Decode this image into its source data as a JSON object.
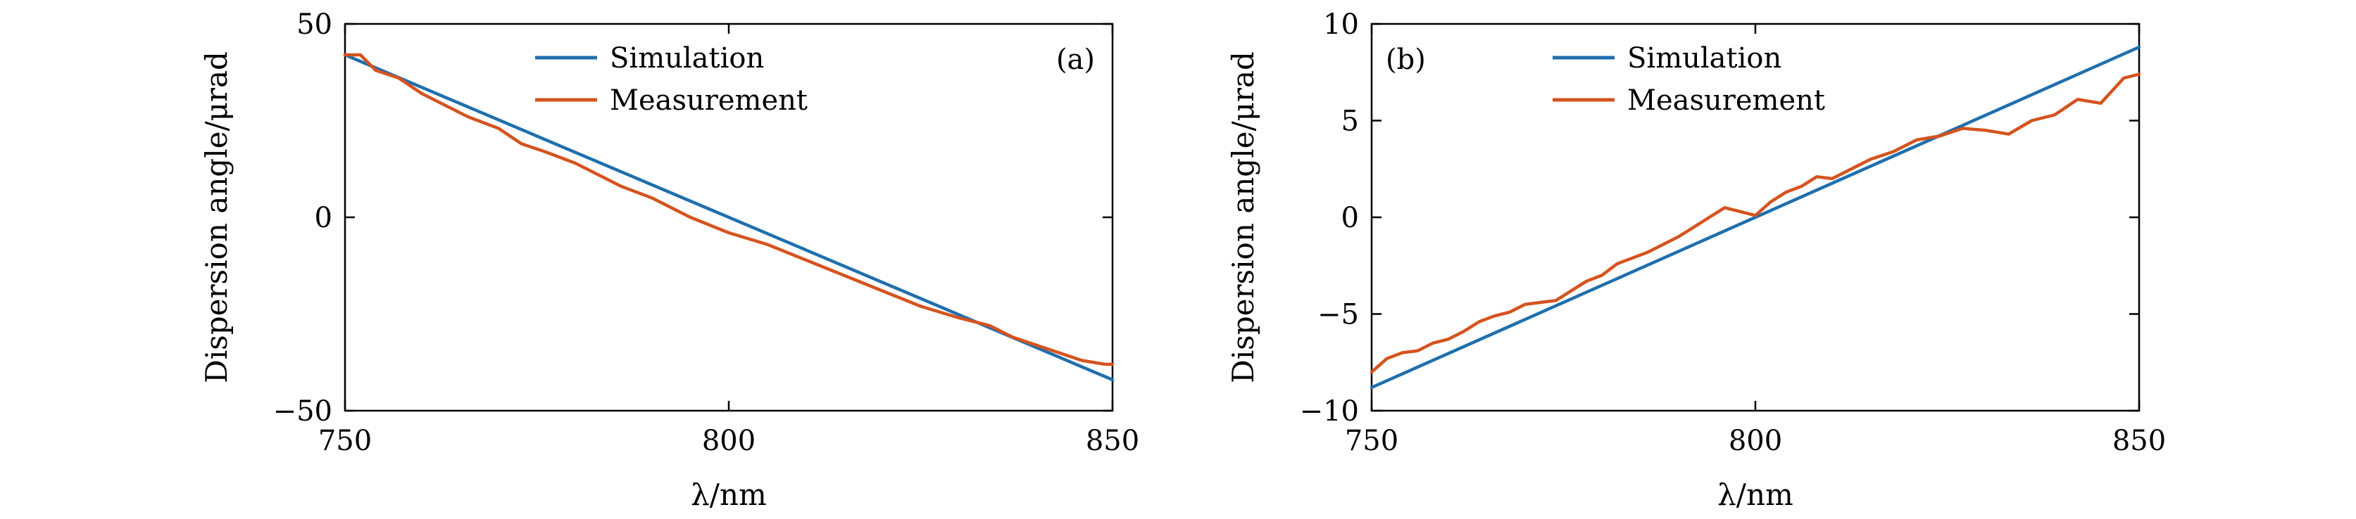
{
  "figure": {
    "colors": {
      "simulation": "#1f6fad",
      "measurement": "#d5531e",
      "axes": "#000000"
    }
  },
  "chart_data": [
    {
      "type": "line",
      "panel_label": "(a)",
      "xlabel": "λ/nm",
      "ylabel": "Dispersion angle/μrad",
      "xlim": [
        750,
        850
      ],
      "ylim": [
        -50,
        50
      ],
      "xticks": [
        750,
        800,
        850
      ],
      "yticks": [
        -50,
        0,
        50
      ],
      "xtick_labels": [
        "750",
        "800",
        "850"
      ],
      "ytick_labels": [
        "−50",
        "0",
        "50"
      ],
      "legend_position": "top-center",
      "series": [
        {
          "name": "Simulation",
          "color": "#1f6fad",
          "x": [
            750,
            850
          ],
          "y": [
            42,
            -42
          ]
        },
        {
          "name": "Measurement",
          "color": "#d5531e",
          "x": [
            750,
            752,
            754,
            757,
            760,
            763,
            766,
            770,
            773,
            776,
            780,
            783,
            786,
            790,
            795,
            800,
            805,
            810,
            815,
            820,
            825,
            830,
            834,
            837,
            840,
            843,
            846,
            849,
            850
          ],
          "y": [
            42,
            42,
            38,
            36,
            32,
            29,
            26,
            23,
            19,
            17,
            14,
            11,
            8,
            5,
            0,
            -4,
            -7,
            -11,
            -15,
            -19,
            -23,
            -26,
            -28,
            -31,
            -33,
            -35,
            -37,
            -38,
            -38
          ]
        }
      ]
    },
    {
      "type": "line",
      "panel_label": "(b)",
      "xlabel": "λ/nm",
      "ylabel": "Dispersion angle/μrad",
      "xlim": [
        750,
        850
      ],
      "ylim": [
        -10,
        10
      ],
      "xticks": [
        750,
        800,
        850
      ],
      "yticks": [
        -10,
        -5,
        0,
        5,
        10
      ],
      "xtick_labels": [
        "750",
        "800",
        "850"
      ],
      "ytick_labels": [
        "−10",
        "−5",
        "0",
        "5",
        "10"
      ],
      "legend_position": "top-center",
      "series": [
        {
          "name": "Simulation",
          "color": "#1f6fad",
          "x": [
            750,
            850
          ],
          "y": [
            -8.8,
            8.8
          ]
        },
        {
          "name": "Measurement",
          "color": "#d5531e",
          "x": [
            750,
            752,
            754,
            756,
            758,
            760,
            762,
            764,
            766,
            768,
            770,
            772,
            774,
            776,
            778,
            780,
            782,
            784,
            786,
            788,
            790,
            792,
            794,
            796,
            798,
            800,
            802,
            804,
            806,
            808,
            810,
            812,
            815,
            818,
            821,
            824,
            827,
            830,
            833,
            836,
            839,
            842,
            845,
            848,
            850
          ],
          "y": [
            -8,
            -7.3,
            -7,
            -6.9,
            -6.5,
            -6.3,
            -5.9,
            -5.4,
            -5.1,
            -4.9,
            -4.5,
            -4.4,
            -4.3,
            -3.8,
            -3.3,
            -3.0,
            -2.4,
            -2.1,
            -1.8,
            -1.4,
            -1.0,
            -0.5,
            0.0,
            0.5,
            0.3,
            0.1,
            0.8,
            1.3,
            1.6,
            2.1,
            2.0,
            2.4,
            3.0,
            3.4,
            4.0,
            4.2,
            4.6,
            4.5,
            4.3,
            5.0,
            5.3,
            6.1,
            5.9,
            7.2,
            7.4
          ]
        }
      ]
    }
  ]
}
